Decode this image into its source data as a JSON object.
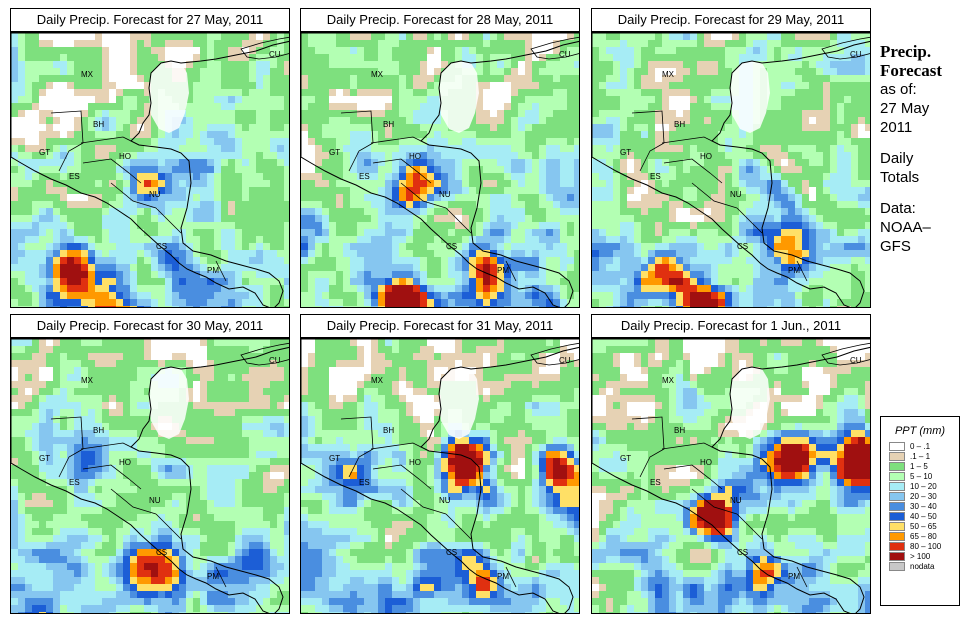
{
  "panels": [
    {
      "title": "Daily Precip. Forecast for  27 May, 2011",
      "seed": 11,
      "hot": [
        [
          60,
          230,
          1.0
        ],
        [
          95,
          290,
          1.0
        ],
        [
          130,
          150,
          0.6
        ]
      ]
    },
    {
      "title": "Daily Precip. Forecast for  28 May, 2011",
      "seed": 23,
      "hot": [
        [
          100,
          265,
          1.1
        ],
        [
          110,
          150,
          0.8
        ],
        [
          180,
          230,
          0.6
        ]
      ]
    },
    {
      "title": "Daily Precip. Forecast for  29 May, 2011",
      "seed": 37,
      "hot": [
        [
          110,
          270,
          1.0
        ],
        [
          70,
          240,
          0.7
        ],
        [
          200,
          210,
          0.6
        ]
      ]
    },
    {
      "title": "Daily Precip. Forecast for  30 May, 2011",
      "seed": 41,
      "hot": [
        [
          140,
          230,
          0.6
        ],
        [
          70,
          120,
          0.4
        ],
        [
          200,
          240,
          0.4
        ]
      ]
    },
    {
      "title": "Daily Precip. Forecast for  31 May, 2011",
      "seed": 53,
      "hot": [
        [
          160,
          120,
          1.0
        ],
        [
          260,
          130,
          0.9
        ],
        [
          40,
          130,
          0.7
        ],
        [
          180,
          240,
          0.8
        ]
      ]
    },
    {
      "title": "Daily Precip. Forecast for  1 Jun., 2011",
      "seed": 67,
      "hot": [
        [
          265,
          120,
          1.5
        ],
        [
          200,
          115,
          1.0
        ],
        [
          120,
          170,
          1.0
        ],
        [
          170,
          230,
          0.7
        ]
      ]
    }
  ],
  "country_labels": [
    "MX",
    "BH",
    "GT",
    "HO",
    "ES",
    "NU",
    "CS",
    "PM",
    "CU"
  ],
  "side": {
    "heading1": "Precip.",
    "heading2": "Forecast",
    "asof": "as of:",
    "date1": "27 May",
    "date2": "2011",
    "daily1": "Daily",
    "daily2": "Totals",
    "data1": "Data:",
    "data2": "NOAA–",
    "data3": "GFS"
  },
  "legend": {
    "title": "PPT (mm)",
    "items": [
      {
        "label": "0 – .1",
        "color": "#ffffff"
      },
      {
        "label": ".1 – 1",
        "color": "#e6d2b4"
      },
      {
        "label": "1 – 5",
        "color": "#7ee07e"
      },
      {
        "label": "5 – 10",
        "color": "#b3ffb3"
      },
      {
        "label": "10 – 20",
        "color": "#a6ecf5"
      },
      {
        "label": "20 – 30",
        "color": "#86c6f0"
      },
      {
        "label": "30 – 40",
        "color": "#4a8ee0"
      },
      {
        "label": "40 – 50",
        "color": "#1c5ed6"
      },
      {
        "label": "50 – 65",
        "color": "#ffe066"
      },
      {
        "label": "65 – 80",
        "color": "#ff9900"
      },
      {
        "label": "80 – 100",
        "color": "#e03010"
      },
      {
        "label": "> 100",
        "color": "#a01010"
      },
      {
        "label": "nodata",
        "color": "#c8c8c8"
      }
    ]
  }
}
